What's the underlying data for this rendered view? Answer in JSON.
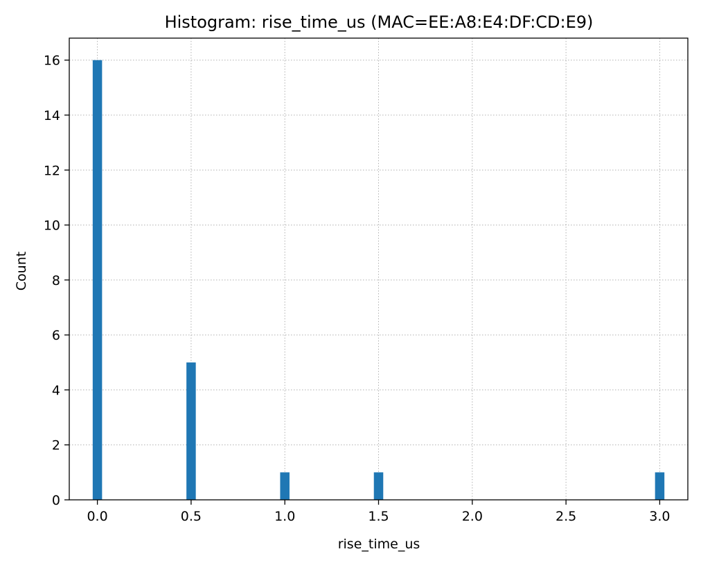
{
  "chart_data": {
    "type": "bar",
    "title": "Histogram: rise_time_us (MAC=EE:A8:E4:DF:CD:E9)",
    "xlabel": "rise_time_us",
    "ylabel": "Count",
    "xlim": [
      -0.15,
      3.15
    ],
    "ylim": [
      0,
      16.8
    ],
    "x_ticks": [
      0.0,
      0.5,
      1.0,
      1.5,
      2.0,
      2.5,
      3.0
    ],
    "x_tick_labels": [
      "0.0",
      "0.5",
      "1.0",
      "1.5",
      "2.0",
      "2.5",
      "3.0"
    ],
    "y_ticks": [
      0,
      2,
      4,
      6,
      8,
      10,
      12,
      14,
      16
    ],
    "y_tick_labels": [
      "0",
      "2",
      "4",
      "6",
      "8",
      "10",
      "12",
      "14",
      "16"
    ],
    "bin_width": 0.05,
    "bins": [
      {
        "x": 0.0,
        "count": 16
      },
      {
        "x": 0.5,
        "count": 5
      },
      {
        "x": 1.0,
        "count": 1
      },
      {
        "x": 1.5,
        "count": 1
      },
      {
        "x": 3.0,
        "count": 1
      }
    ],
    "grid": true,
    "bar_color": "#1f77b4"
  }
}
